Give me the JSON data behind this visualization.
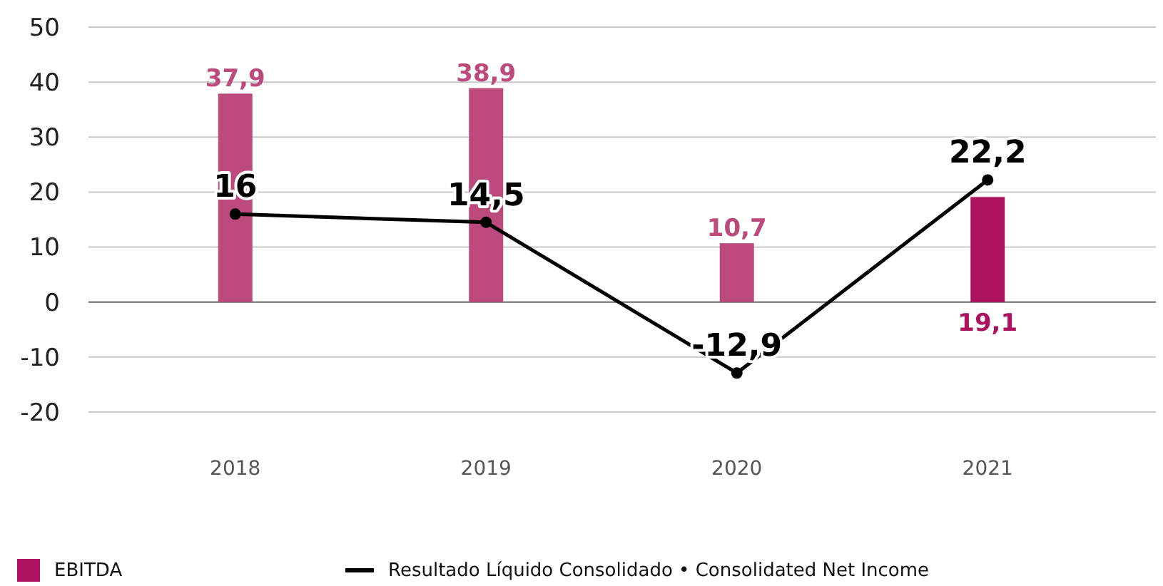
{
  "chart_data": {
    "type": "bar",
    "categories": [
      "2018",
      "2019",
      "2020",
      "2021"
    ],
    "series": [
      {
        "name": "EBITDA",
        "color": "#ad1260",
        "colors": [
          "#bc4a7c",
          "#bc4a7c",
          "#bc4a7c",
          "#ad1260"
        ],
        "values": [
          37.9,
          38.9,
          10.7,
          19.1
        ],
        "value_labels": [
          "37,9",
          "38,9",
          "10,7",
          "19,1"
        ]
      },
      {
        "name": "Resultado Líquido Consolidado • Consolidated Net Income",
        "type": "line",
        "color": "#000000",
        "values": [
          16,
          14.5,
          -12.9,
          22.2
        ],
        "value_labels": [
          "16",
          "14,5",
          "-12,9",
          "22,2"
        ]
      }
    ],
    "ylim": [
      -20,
      50
    ],
    "yticks": [
      -20,
      -10,
      0,
      10,
      20,
      30,
      40,
      50
    ],
    "grid": "y",
    "legend": "bottom left",
    "marker": "circle",
    "line_style": "solid"
  }
}
